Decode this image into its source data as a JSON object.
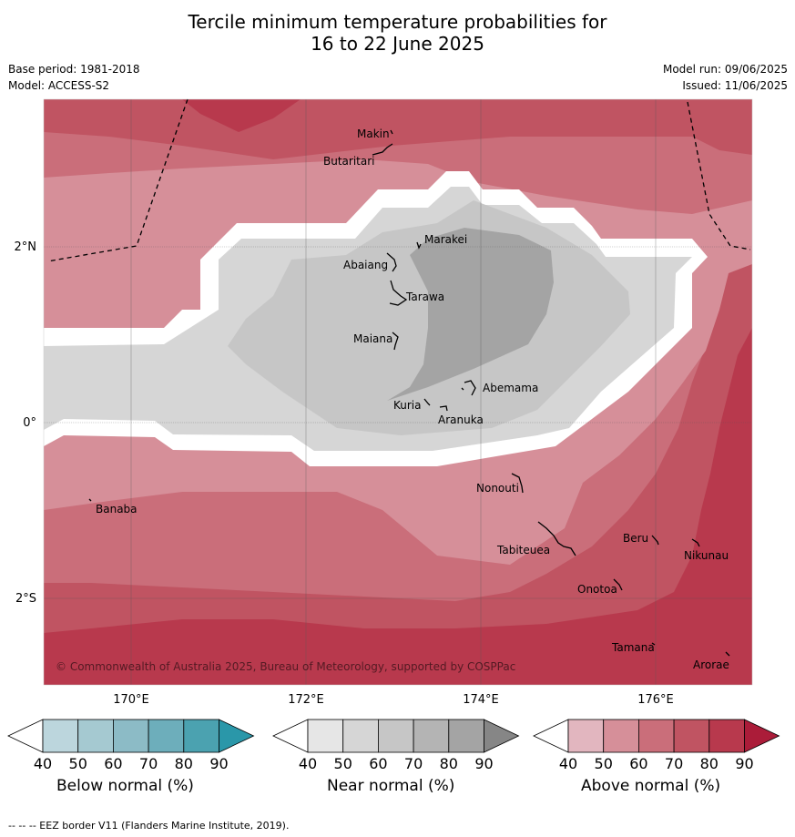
{
  "header": {
    "title_line1": "Tercile minimum temperature probabilities for",
    "title_line2": "16 to 22 June 2025",
    "base_period": "Base period: 1981-2018",
    "model": "Model: ACCESS-S2",
    "model_run": "Model run: 09/06/2025",
    "issued": "Issued: 11/06/2025"
  },
  "map": {
    "longitude_labels": [
      "170°E",
      "172°E",
      "174°E",
      "176°E"
    ],
    "latitude_labels": [
      "2°N",
      "0°",
      "2°S"
    ],
    "places": [
      "Makin",
      "Butaritari",
      "Marakei",
      "Abaiang",
      "Tarawa",
      "Maiana",
      "Abemama",
      "Kuria",
      "Aranuka",
      "Nonouti",
      "Banaba",
      "Tabiteuea",
      "Beru",
      "Nikunau",
      "Onotoa",
      "Tamana",
      "Arorae"
    ],
    "copyright": "© Commonwealth of Australia 2025, Bureau of Meteorology, supported by COSPPac"
  },
  "legends": [
    {
      "label": "Below normal (%)",
      "ticks": [
        "40",
        "50",
        "60",
        "70",
        "80",
        "90"
      ],
      "colors": [
        "#ffffff",
        "#bcd6dd",
        "#a5c9d1",
        "#8cbbc6",
        "#6daebb",
        "#4ba2b0",
        "#2a97a9"
      ]
    },
    {
      "label": "Near normal (%)",
      "ticks": [
        "40",
        "50",
        "60",
        "70",
        "80",
        "90"
      ],
      "colors": [
        "#ffffff",
        "#e6e6e6",
        "#d6d6d6",
        "#c6c6c6",
        "#b4b4b4",
        "#a4a4a4",
        "#868686"
      ]
    },
    {
      "label": "Above normal (%)",
      "ticks": [
        "40",
        "50",
        "60",
        "70",
        "80",
        "90"
      ],
      "colors": [
        "#ffffff",
        "#e2b6bf",
        "#d68f99",
        "#ca6e7a",
        "#c05462",
        "#b8394d",
        "#ab1c39"
      ]
    }
  ],
  "footer": "--  --  -- EEZ border V11 (Flanders Marine Institute, 2019)."
}
